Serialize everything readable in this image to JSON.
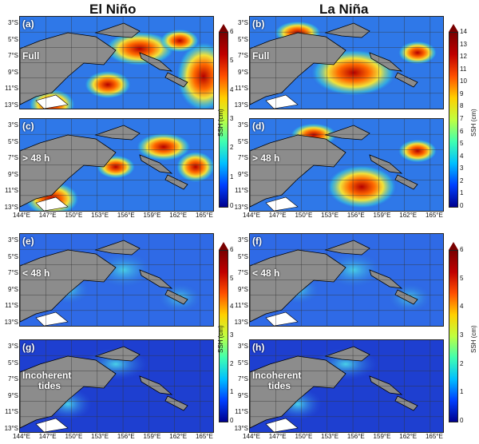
{
  "columns": {
    "left": "El Niño",
    "right": "La Niña"
  },
  "lat_ticks": [
    "3°S",
    "5°S",
    "7°S",
    "9°S",
    "11°S",
    "13°S"
  ],
  "lon_ticks": [
    "144°E",
    "147°E",
    "150°E",
    "153°E",
    "156°E",
    "159°E",
    "162°E",
    "165°E"
  ],
  "panels": {
    "a": {
      "letter": "(a)",
      "label": "Full"
    },
    "b": {
      "letter": "(b)",
      "label": "Full"
    },
    "c": {
      "letter": "(c)",
      "label": "> 48 h"
    },
    "d": {
      "letter": "(d)",
      "label": "> 48 h"
    },
    "e": {
      "letter": "(e)",
      "label": "< 48 h"
    },
    "f": {
      "letter": "(f)",
      "label": "< 48 h"
    },
    "g": {
      "letter": "(g)",
      "label_line1": "Incoherent",
      "label_line2": "tides"
    },
    "h": {
      "letter": "(h)",
      "label_line1": "Incoherent",
      "label_line2": "tides"
    }
  },
  "colorbars": {
    "top_left": {
      "unit": "SSH (cm)",
      "ticks": [
        "0",
        "1",
        "2",
        "3",
        "4",
        "5",
        "6"
      ]
    },
    "top_right": {
      "unit": "SSH (cm)",
      "ticks": [
        "0",
        "1",
        "2",
        "3",
        "4",
        "5",
        "6",
        "7",
        "8",
        "9",
        "10",
        "11",
        "12",
        "13",
        "14"
      ]
    },
    "bottom_left": {
      "unit": "SSH (cm)",
      "ticks": [
        "0",
        "1",
        "2",
        "3",
        "4",
        "5",
        "6"
      ]
    },
    "bottom_right": {
      "unit": "SSH (cm)",
      "ticks": [
        "0",
        "1",
        "2",
        "3",
        "4",
        "5",
        "6"
      ]
    }
  },
  "colors": {
    "land": "#8c8c8c",
    "grid": "#333333",
    "background": "#1f4fd8"
  }
}
